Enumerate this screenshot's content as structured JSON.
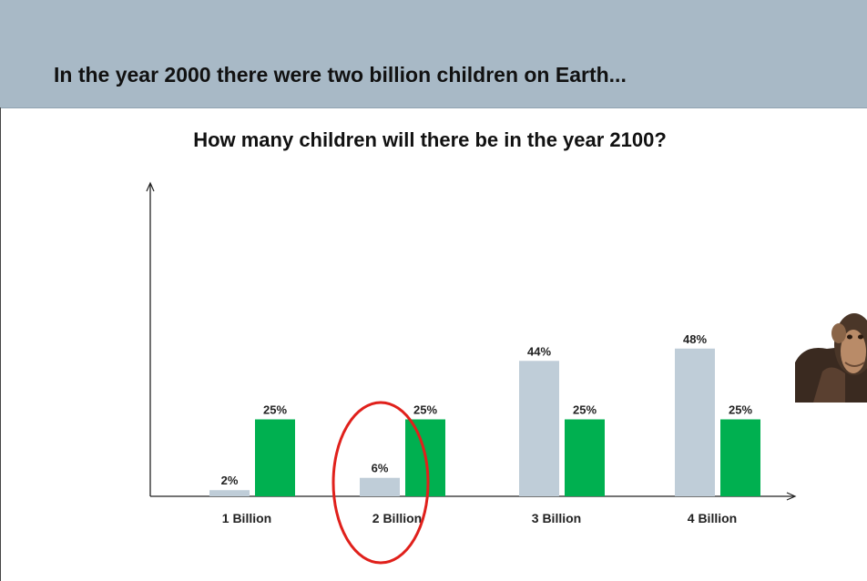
{
  "header": {
    "title": "In the year 2000 there were two billion children on Earth..."
  },
  "chart_data": {
    "type": "bar",
    "title": "How many children will there be in the year 2100?",
    "categories": [
      "1 Billion",
      "2 Billion",
      "3 Billion",
      "4 Billion"
    ],
    "series": [
      {
        "values": [
          2,
          6,
          44,
          48
        ],
        "labels": [
          "2%",
          "6%",
          "44%",
          "48%"
        ],
        "color": "#bfcdd8"
      },
      {
        "values": [
          25,
          25,
          25,
          25
        ],
        "labels": [
          "25%",
          "25%",
          "25%",
          "25%"
        ],
        "color": "#00b050"
      }
    ],
    "ylim": [
      0,
      60
    ],
    "xlabel": "",
    "ylabel": "",
    "grid": false,
    "highlight": {
      "category": "2 Billion",
      "shape": "circle",
      "color": "#e0201b"
    }
  },
  "decor": {
    "image": "chimpanzee-icon"
  }
}
